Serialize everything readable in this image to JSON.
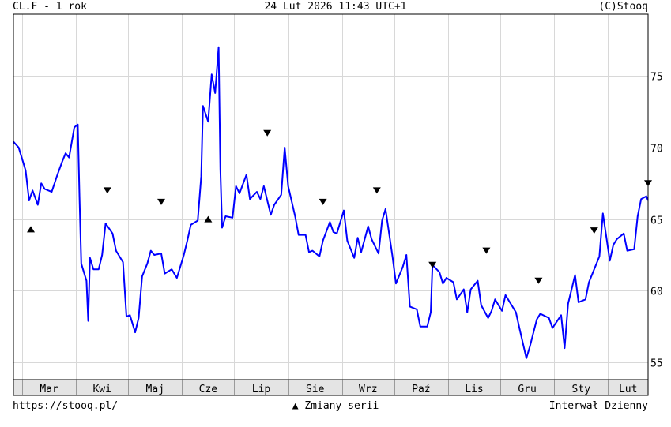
{
  "header": {
    "left": "CL.F - 1 rok",
    "center": "24 Lut 2026 11:43 UTC+1",
    "right": "(C)Stooq"
  },
  "footer": {
    "left": "https://stooq.pl/",
    "center_symbol": "▲",
    "center_text": "Zmiany serii",
    "right": "Interwał Dzienny"
  },
  "colors": {
    "series": "#0000ff",
    "grid": "#d8d8d8",
    "axis_bar": "#e4e4e4"
  },
  "chart_data": {
    "type": "line",
    "title": "CL.F - 1 rok",
    "xlabel": "",
    "ylabel": "",
    "x_range": [
      "2025-02-24",
      "2026-02-24"
    ],
    "ylim": [
      53.8,
      79.3
    ],
    "y_ticks": [
      55,
      60,
      65,
      70,
      75
    ],
    "x_ticks": [
      {
        "label": "Mar",
        "date": "2025-03-01"
      },
      {
        "label": "Kwi",
        "date": "2025-04-01"
      },
      {
        "label": "Maj",
        "date": "2025-05-01"
      },
      {
        "label": "Cze",
        "date": "2025-06-01"
      },
      {
        "label": "Lip",
        "date": "2025-07-01"
      },
      {
        "label": "Sie",
        "date": "2025-08-01"
      },
      {
        "label": "Wrz",
        "date": "2025-09-01"
      },
      {
        "label": "Paź",
        "date": "2025-10-01"
      },
      {
        "label": "Lis",
        "date": "2025-11-01"
      },
      {
        "label": "Gru",
        "date": "2025-12-01"
      },
      {
        "label": "Sty",
        "date": "2026-01-01"
      },
      {
        "label": "Lut",
        "date": "2026-02-01"
      }
    ],
    "grid": true,
    "series": [
      {
        "points": [
          [
            "2025-02-24",
            70.4
          ],
          [
            "2025-02-27",
            70.0
          ],
          [
            "2025-03-03",
            68.4
          ],
          [
            "2025-03-05",
            66.3
          ],
          [
            "2025-03-07",
            67.0
          ],
          [
            "2025-03-10",
            66.0
          ],
          [
            "2025-03-12",
            67.5
          ],
          [
            "2025-03-14",
            67.1
          ],
          [
            "2025-03-18",
            66.9
          ],
          [
            "2025-03-21",
            68.0
          ],
          [
            "2025-03-24",
            69.0
          ],
          [
            "2025-03-26",
            69.6
          ],
          [
            "2025-03-28",
            69.3
          ],
          [
            "2025-03-31",
            71.4
          ],
          [
            "2025-04-02",
            71.6
          ],
          [
            "2025-04-03",
            66.5
          ],
          [
            "2025-04-04",
            61.9
          ],
          [
            "2025-04-07",
            60.7
          ],
          [
            "2025-04-08",
            57.9
          ],
          [
            "2025-04-09",
            62.3
          ],
          [
            "2025-04-11",
            61.5
          ],
          [
            "2025-04-14",
            61.5
          ],
          [
            "2025-04-16",
            62.5
          ],
          [
            "2025-04-18",
            64.7
          ],
          [
            "2025-04-22",
            64.0
          ],
          [
            "2025-04-24",
            62.8
          ],
          [
            "2025-04-28",
            62.0
          ],
          [
            "2025-04-30",
            58.2
          ],
          [
            "2025-05-02",
            58.3
          ],
          [
            "2025-05-05",
            57.1
          ],
          [
            "2025-05-07",
            58.1
          ],
          [
            "2025-05-09",
            61.0
          ],
          [
            "2025-05-12",
            61.9
          ],
          [
            "2025-05-14",
            62.8
          ],
          [
            "2025-05-16",
            62.5
          ],
          [
            "2025-05-20",
            62.6
          ],
          [
            "2025-05-22",
            61.2
          ],
          [
            "2025-05-26",
            61.5
          ],
          [
            "2025-05-29",
            60.9
          ],
          [
            "2025-06-02",
            62.5
          ],
          [
            "2025-06-04",
            63.5
          ],
          [
            "2025-06-06",
            64.6
          ],
          [
            "2025-06-10",
            64.9
          ],
          [
            "2025-06-12",
            68.0
          ],
          [
            "2025-06-13",
            72.9
          ],
          [
            "2025-06-16",
            71.8
          ],
          [
            "2025-06-18",
            75.1
          ],
          [
            "2025-06-20",
            73.8
          ],
          [
            "2025-06-22",
            77.0
          ],
          [
            "2025-06-23",
            68.5
          ],
          [
            "2025-06-24",
            64.4
          ],
          [
            "2025-06-26",
            65.2
          ],
          [
            "2025-06-30",
            65.1
          ],
          [
            "2025-07-02",
            67.3
          ],
          [
            "2025-07-04",
            66.8
          ],
          [
            "2025-07-08",
            68.1
          ],
          [
            "2025-07-10",
            66.4
          ],
          [
            "2025-07-14",
            66.9
          ],
          [
            "2025-07-16",
            66.4
          ],
          [
            "2025-07-18",
            67.3
          ],
          [
            "2025-07-22",
            65.3
          ],
          [
            "2025-07-24",
            66.0
          ],
          [
            "2025-07-28",
            66.7
          ],
          [
            "2025-07-30",
            70.0
          ],
          [
            "2025-08-01",
            67.3
          ],
          [
            "2025-08-05",
            65.2
          ],
          [
            "2025-08-07",
            63.9
          ],
          [
            "2025-08-11",
            63.9
          ],
          [
            "2025-08-13",
            62.7
          ],
          [
            "2025-08-15",
            62.8
          ],
          [
            "2025-08-19",
            62.4
          ],
          [
            "2025-08-21",
            63.5
          ],
          [
            "2025-08-25",
            64.8
          ],
          [
            "2025-08-27",
            64.1
          ],
          [
            "2025-08-29",
            64.0
          ],
          [
            "2025-09-02",
            65.6
          ],
          [
            "2025-09-04",
            63.5
          ],
          [
            "2025-09-08",
            62.3
          ],
          [
            "2025-09-10",
            63.7
          ],
          [
            "2025-09-12",
            62.7
          ],
          [
            "2025-09-16",
            64.5
          ],
          [
            "2025-09-18",
            63.6
          ],
          [
            "2025-09-22",
            62.6
          ],
          [
            "2025-09-24",
            64.9
          ],
          [
            "2025-09-26",
            65.7
          ],
          [
            "2025-09-30",
            62.4
          ],
          [
            "2025-10-02",
            60.5
          ],
          [
            "2025-10-06",
            61.7
          ],
          [
            "2025-10-08",
            62.5
          ],
          [
            "2025-10-10",
            58.9
          ],
          [
            "2025-10-14",
            58.7
          ],
          [
            "2025-10-16",
            57.5
          ],
          [
            "2025-10-20",
            57.5
          ],
          [
            "2025-10-22",
            58.5
          ],
          [
            "2025-10-23",
            61.8
          ],
          [
            "2025-10-27",
            61.3
          ],
          [
            "2025-10-29",
            60.5
          ],
          [
            "2025-10-31",
            60.9
          ],
          [
            "2025-11-04",
            60.6
          ],
          [
            "2025-11-06",
            59.4
          ],
          [
            "2025-11-10",
            60.1
          ],
          [
            "2025-11-12",
            58.5
          ],
          [
            "2025-11-14",
            60.1
          ],
          [
            "2025-11-18",
            60.7
          ],
          [
            "2025-11-20",
            59.0
          ],
          [
            "2025-11-24",
            58.1
          ],
          [
            "2025-11-26",
            58.6
          ],
          [
            "2025-11-28",
            59.4
          ],
          [
            "2025-12-02",
            58.6
          ],
          [
            "2025-12-04",
            59.7
          ],
          [
            "2025-12-08",
            58.9
          ],
          [
            "2025-12-10",
            58.5
          ],
          [
            "2025-12-12",
            57.4
          ],
          [
            "2025-12-16",
            55.3
          ],
          [
            "2025-12-18",
            56.1
          ],
          [
            "2025-12-22",
            58.0
          ],
          [
            "2025-12-24",
            58.4
          ],
          [
            "2025-12-29",
            58.1
          ],
          [
            "2025-12-31",
            57.4
          ],
          [
            "2026-01-05",
            58.3
          ],
          [
            "2026-01-07",
            56.0
          ],
          [
            "2026-01-09",
            59.1
          ],
          [
            "2026-01-13",
            61.1
          ],
          [
            "2026-01-15",
            59.2
          ],
          [
            "2026-01-19",
            59.4
          ],
          [
            "2026-01-21",
            60.6
          ],
          [
            "2026-01-23",
            61.2
          ],
          [
            "2026-01-27",
            62.4
          ],
          [
            "2026-01-29",
            65.4
          ],
          [
            "2026-02-02",
            62.1
          ],
          [
            "2026-02-04",
            63.2
          ],
          [
            "2026-02-06",
            63.6
          ],
          [
            "2026-02-10",
            64.0
          ],
          [
            "2026-02-12",
            62.8
          ],
          [
            "2026-02-16",
            62.9
          ],
          [
            "2026-02-18",
            65.2
          ],
          [
            "2026-02-20",
            66.4
          ],
          [
            "2026-02-23",
            66.6
          ],
          [
            "2026-02-24",
            66.3
          ]
        ]
      }
    ],
    "annotations": [
      {
        "date": "2025-03-06",
        "value": 64.3,
        "symbol": "▲"
      },
      {
        "date": "2025-04-19",
        "value": 67.0,
        "symbol": "▼"
      },
      {
        "date": "2025-05-20",
        "value": 66.2,
        "symbol": "▼"
      },
      {
        "date": "2025-06-16",
        "value": 65.0,
        "symbol": "▲"
      },
      {
        "date": "2025-07-20",
        "value": 71.0,
        "symbol": "▼"
      },
      {
        "date": "2025-08-21",
        "value": 66.2,
        "symbol": "▼"
      },
      {
        "date": "2025-09-21",
        "value": 67.0,
        "symbol": "▼"
      },
      {
        "date": "2025-10-23",
        "value": 61.8,
        "symbol": "▼"
      },
      {
        "date": "2025-11-23",
        "value": 62.8,
        "symbol": "▼"
      },
      {
        "date": "2025-12-23",
        "value": 60.7,
        "symbol": "▼"
      },
      {
        "date": "2026-01-24",
        "value": 64.2,
        "symbol": "▼"
      },
      {
        "date": "2026-02-24",
        "value": 67.5,
        "symbol": "▼"
      }
    ]
  }
}
